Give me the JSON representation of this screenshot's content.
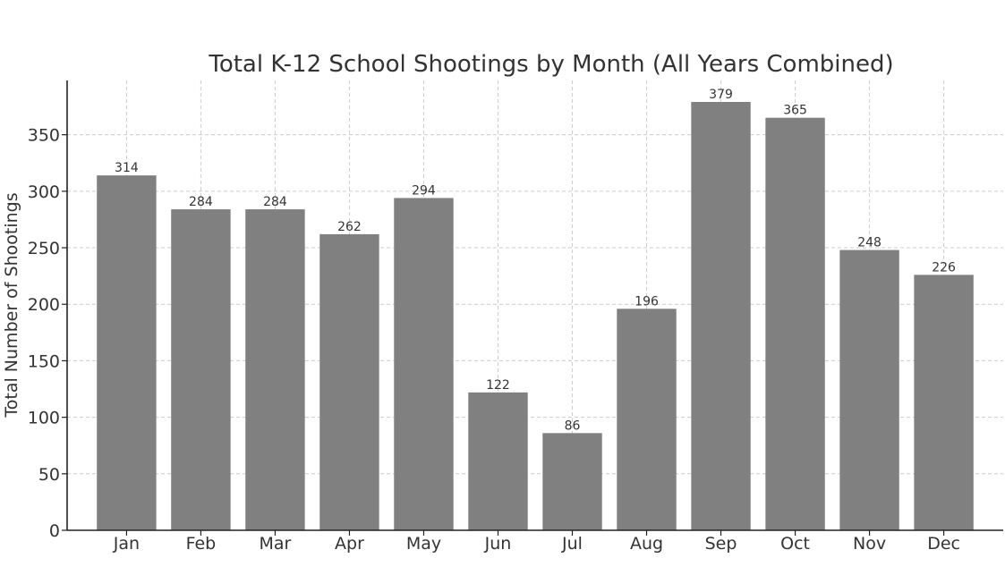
{
  "chart_data": {
    "type": "bar",
    "title": "Total K-12 School Shootings by Month (All Years Combined)",
    "xlabel": "",
    "ylabel": "Total Number of Shootings",
    "categories": [
      "Jan",
      "Feb",
      "Mar",
      "Apr",
      "May",
      "Jun",
      "Jul",
      "Aug",
      "Sep",
      "Oct",
      "Nov",
      "Dec"
    ],
    "values": [
      314,
      284,
      284,
      262,
      294,
      122,
      86,
      196,
      379,
      365,
      248,
      226
    ],
    "data_labels": [
      "314",
      "284",
      "284",
      "262",
      "294",
      "122",
      "86",
      "196",
      "379",
      "365",
      "248",
      "226"
    ],
    "ylim": [
      0,
      398
    ],
    "yticks": [
      0,
      50,
      100,
      150,
      200,
      250,
      300,
      350
    ],
    "ytick_labels": [
      "0",
      "50",
      "100",
      "150",
      "200",
      "250",
      "300",
      "350"
    ],
    "grid": true,
    "legend": "none",
    "bar_color": "#808080"
  }
}
